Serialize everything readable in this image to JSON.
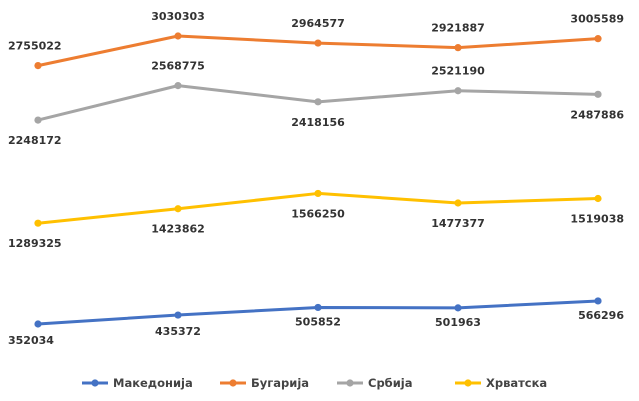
{
  "chart_data": {
    "type": "line",
    "title": "",
    "xlabel": "",
    "ylabel": "",
    "grid": false,
    "legend": "bottom",
    "x": [
      1,
      2,
      3,
      4,
      5
    ],
    "series": [
      {
        "name": "Македонија",
        "color": "#4472c4",
        "values": [
          352034,
          435372,
          505852,
          501963,
          566296
        ],
        "labels": [
          "352034",
          "435372",
          "505852",
          "501963",
          "566296"
        ]
      },
      {
        "name": "Бугарија",
        "color": "#ed7d31",
        "values": [
          2755022,
          3030303,
          2964577,
          2921887,
          3005589
        ],
        "labels": [
          "2755022",
          "3030303",
          "2964577",
          "2921887",
          "3005589"
        ]
      },
      {
        "name": "Србија",
        "color": "#a5a5a5",
        "values": [
          2248172,
          2568775,
          2418156,
          2521190,
          2487886
        ],
        "labels": [
          "2248172",
          "2568775",
          "2418156",
          "2521190",
          "2487886"
        ]
      },
      {
        "name": "Хрватска",
        "color": "#ffc000",
        "values": [
          1289325,
          1423862,
          1566250,
          1477377,
          1519038
        ],
        "labels": [
          "1289325",
          "1423862",
          "1566250",
          "1477377",
          "1519038"
        ]
      }
    ]
  }
}
